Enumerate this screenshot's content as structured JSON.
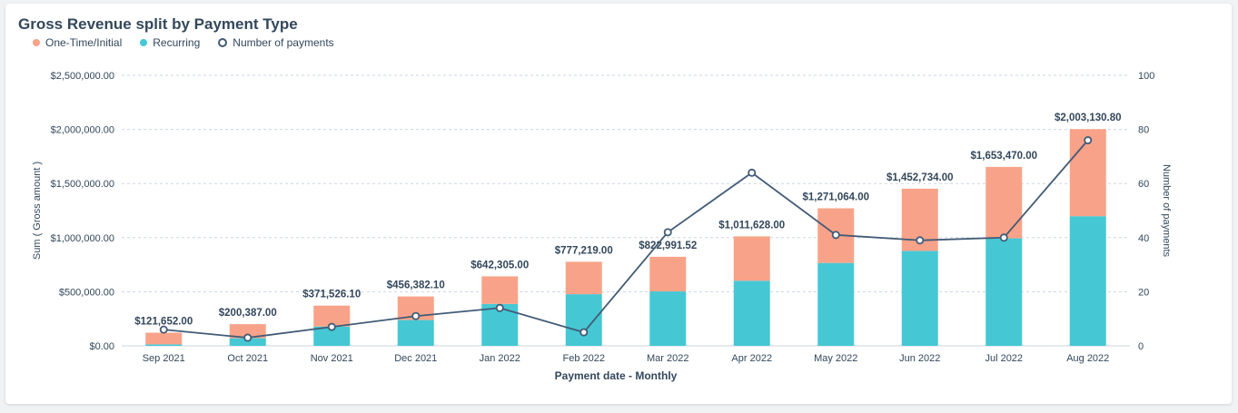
{
  "colors": {
    "one_time": "#f8a389",
    "recurring": "#45c8d4",
    "payments_line": "#425b76",
    "grid": "#cbd6e2"
  },
  "chart_data": {
    "type": "bar",
    "title": "Gross Revenue split by Payment Type",
    "xlabel": "Payment date - Monthly",
    "ylabel": "Sum ( Gross amount )",
    "y2label": "Number of payments",
    "stacked": true,
    "categories": [
      "Sep 2021",
      "Oct 2021",
      "Nov 2021",
      "Dec 2021",
      "Jan 2022",
      "Feb 2022",
      "Mar 2022",
      "Apr 2022",
      "May 2022",
      "Jun 2022",
      "Jul 2022",
      "Aug 2022"
    ],
    "series": [
      {
        "name": "One-Time/Initial",
        "type": "bar",
        "axis": "left",
        "values": [
          108000,
          130000,
          193000,
          218000,
          255000,
          300000,
          320000,
          410000,
          505000,
          575000,
          660000,
          805000
        ]
      },
      {
        "name": "Recurring",
        "type": "bar",
        "axis": "left",
        "values": [
          13652,
          70387,
          178526,
          238382,
          387305,
          477219,
          502992,
          601628,
          766064,
          877734,
          993470,
          1198131
        ]
      },
      {
        "name": "Number of payments",
        "type": "line",
        "axis": "right",
        "values": [
          6,
          3,
          7,
          11,
          14,
          5,
          42,
          64,
          41,
          39,
          40,
          76
        ]
      }
    ],
    "totals": [
      "$121,652.00",
      "$200,387.00",
      "$371,526.10",
      "$456,382.10",
      "$642,305.00",
      "$777,219.00",
      "$822,991.52",
      "$1,011,628.00",
      "$1,271,064.00",
      "$1,452,734.00",
      "$1,653,470.00",
      "$2,003,130.80"
    ],
    "ylim": [
      0,
      2500000
    ],
    "y2lim": [
      0,
      100
    ],
    "yticks": [
      "$0.00",
      "$500,000.00",
      "$1,000,000.00",
      "$1,500,000.00",
      "$2,000,000.00",
      "$2,500,000.00"
    ],
    "y2ticks": [
      "0",
      "20",
      "40",
      "60",
      "80",
      "100"
    ],
    "grid": true,
    "legend_position": "top-left"
  }
}
